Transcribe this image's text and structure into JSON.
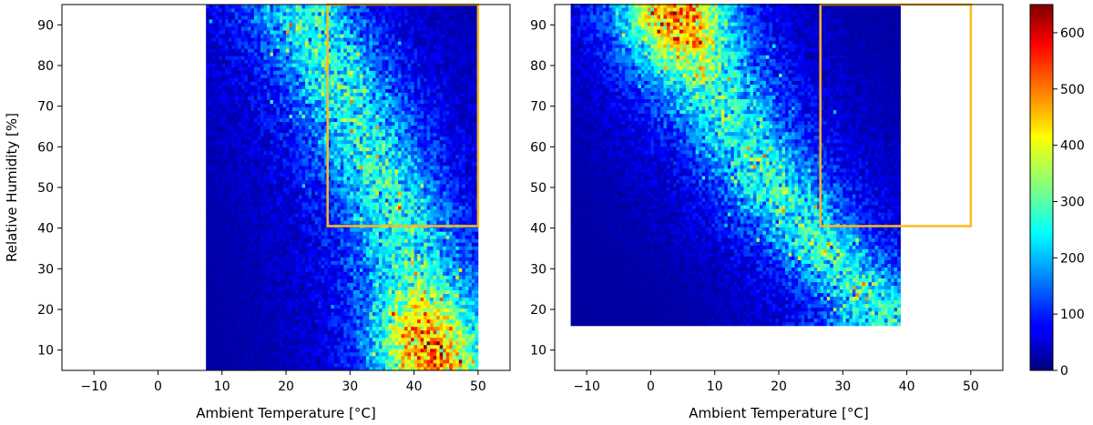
{
  "chart_data": [
    {
      "type": "heatmap",
      "panel": "left",
      "xlabel": "Ambient Temperature [°C]",
      "ylabel": "Relative Humidity [%]",
      "xlim": [
        -15,
        55
      ],
      "ylim": [
        5,
        95
      ],
      "xticks": [
        -10,
        0,
        10,
        20,
        30,
        40,
        50
      ],
      "yticks": [
        10,
        20,
        30,
        40,
        50,
        60,
        70,
        80,
        90
      ],
      "xtick_labels": [
        "−10",
        "0",
        "10",
        "20",
        "30",
        "40",
        "50"
      ],
      "ytick_labels": [
        "10",
        "20",
        "30",
        "40",
        "50",
        "60",
        "70",
        "80",
        "90"
      ],
      "data_extent": {
        "x": [
          7.5,
          50
        ],
        "y": [
          5,
          95
        ]
      },
      "density_band": {
        "description_points": [
          [
            22,
            95
          ],
          [
            30,
            70
          ],
          [
            38,
            40
          ],
          [
            44,
            5
          ]
        ],
        "peak": {
          "x": 42,
          "y": 10,
          "value": 600
        }
      },
      "highlight_box": {
        "x": [
          26.5,
          50
        ],
        "y": [
          40.5,
          95
        ],
        "color": "#FFB81C"
      }
    },
    {
      "type": "heatmap",
      "panel": "right",
      "xlabel": "Ambient Temperature [°C]",
      "ylabel": "",
      "xlim": [
        -15,
        55
      ],
      "ylim": [
        5,
        95
      ],
      "xticks": [
        -10,
        0,
        10,
        20,
        30,
        40,
        50
      ],
      "yticks": [
        10,
        20,
        30,
        40,
        50,
        60,
        70,
        80,
        90
      ],
      "xtick_labels": [
        "−10",
        "0",
        "10",
        "20",
        "30",
        "40",
        "50"
      ],
      "ytick_labels": [
        "10",
        "20",
        "30",
        "40",
        "50",
        "60",
        "70",
        "80",
        "90"
      ],
      "data_extent": {
        "x": [
          -12.5,
          39
        ],
        "y": [
          16,
          95
        ]
      },
      "density_band": {
        "description_points": [
          [
            3,
            95
          ],
          [
            13,
            65
          ],
          [
            24,
            40
          ],
          [
            36,
            20
          ]
        ],
        "peak": {
          "x": 4,
          "y": 92,
          "value": 600
        }
      },
      "highlight_box": {
        "x": [
          26.5,
          50
        ],
        "y": [
          40.5,
          95
        ],
        "color": "#FFB81C"
      }
    }
  ],
  "colorbar": {
    "colormap": "jet",
    "range": [
      0,
      650
    ],
    "ticks": [
      0,
      100,
      200,
      300,
      400,
      500,
      600
    ],
    "tick_labels": [
      "0",
      "100",
      "200",
      "300",
      "400",
      "500",
      "600"
    ]
  }
}
